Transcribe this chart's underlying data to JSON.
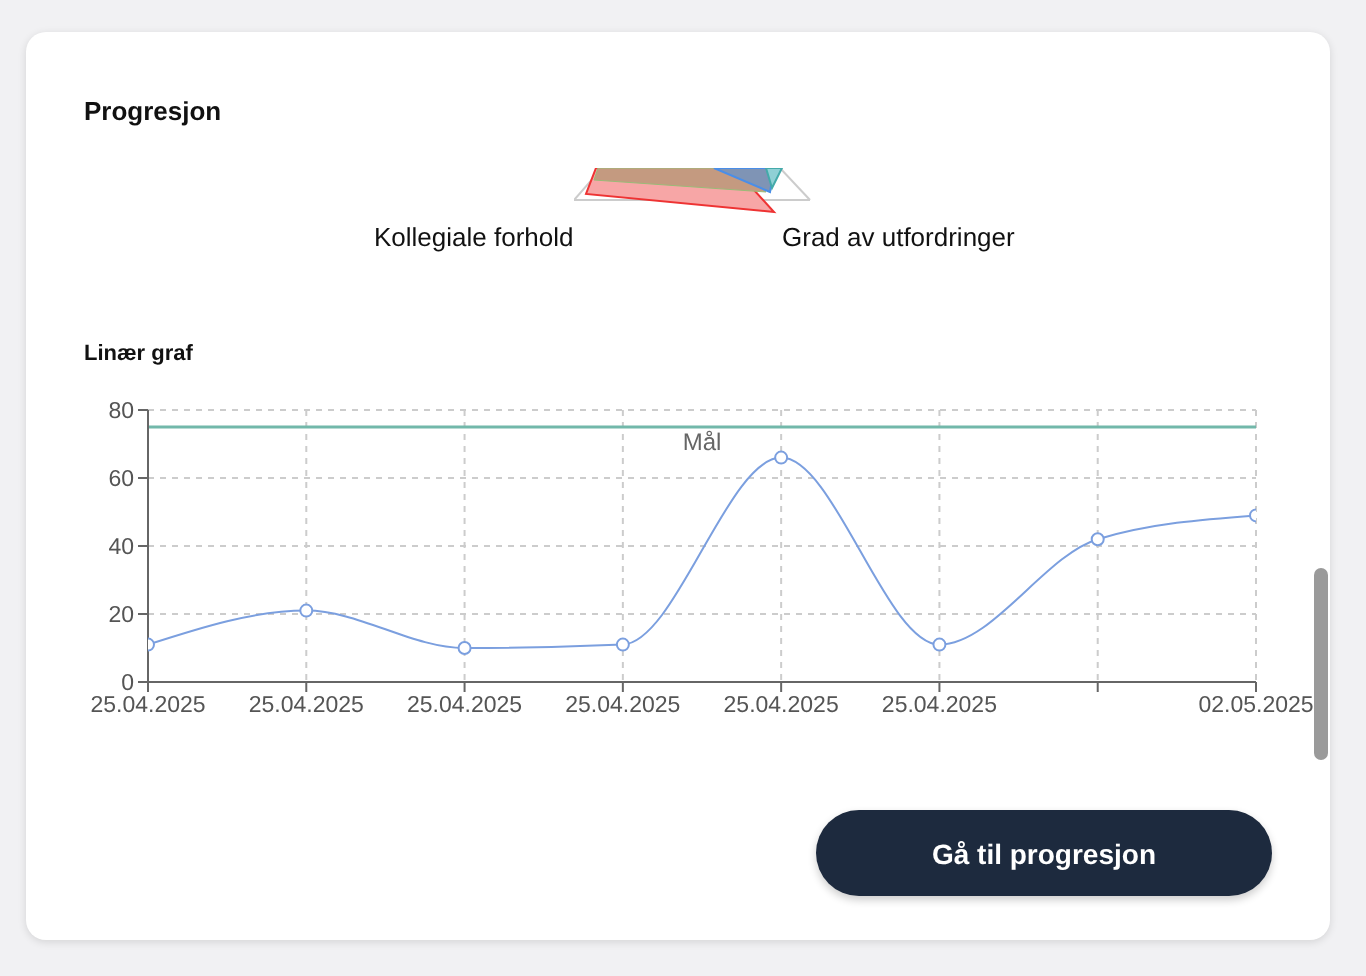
{
  "chart_data": {
    "type": "line",
    "title": "Linær graf",
    "categories": [
      "25.04.2025",
      "25.04.2025",
      "25.04.2025",
      "25.04.2025",
      "25.04.2025",
      "25.04.2025",
      null,
      "02.05.2025"
    ],
    "series": [
      {
        "color": "#7b9fdf",
        "values": [
          11,
          21,
          10,
          11,
          66,
          11,
          42,
          49
        ]
      }
    ],
    "ylim": [
      0,
      80
    ],
    "yticks": [
      0,
      20,
      40,
      60,
      80
    ],
    "grid": true,
    "marker": "circle",
    "line_style": "solid",
    "ref_lines": [
      {
        "axis": "y",
        "value": 75,
        "label": "Mål",
        "color": "#72b8aa"
      }
    ],
    "annotations": [
      "Progresjon",
      "Kollegiale forhold",
      "Grad av utfordringer",
      "Gå til progresjon"
    ]
  }
}
